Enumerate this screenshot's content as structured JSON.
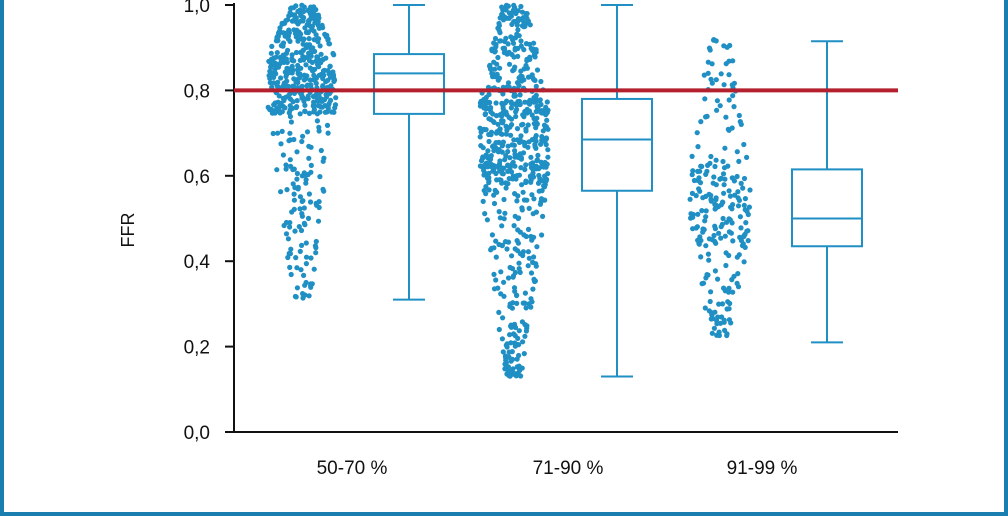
{
  "chart_data": {
    "type": "box-with-swarm",
    "ylabel": "FFR",
    "xlabel": "",
    "ylim": [
      0.0,
      1.0
    ],
    "yticks": [
      "0,0",
      "0,2",
      "0,4",
      "0,6",
      "0,8",
      "1,0"
    ],
    "ytick_values": [
      0.0,
      0.2,
      0.4,
      0.6,
      0.8,
      1.0
    ],
    "categories": [
      "50-70 %",
      "71-90 %",
      "91-99 %"
    ],
    "boxes": [
      {
        "category": "50-70 %",
        "min": 0.31,
        "q1": 0.745,
        "median": 0.84,
        "q3": 0.885,
        "max": 1.0
      },
      {
        "category": "71-90 %",
        "min": 0.13,
        "q1": 0.565,
        "median": 0.685,
        "q3": 0.78,
        "max": 1.0
      },
      {
        "category": "91-99 %",
        "min": 0.21,
        "q1": 0.435,
        "median": 0.5,
        "q3": 0.615,
        "max": 0.915
      }
    ],
    "swarm_ranges": [
      {
        "category": "50-70 %",
        "min": 0.31,
        "max": 1.0,
        "count": 520
      },
      {
        "category": "71-90 %",
        "min": 0.13,
        "max": 1.0,
        "count": 660
      },
      {
        "category": "91-99 %",
        "min": 0.22,
        "max": 0.92,
        "count": 240
      }
    ],
    "reference_line": {
      "y": 0.8,
      "color": "#b5202e"
    },
    "colors": {
      "points": "#1f8fc4",
      "box": "#1f8fc4",
      "axis": "#111111",
      "frame": "#1a7fb0"
    }
  }
}
